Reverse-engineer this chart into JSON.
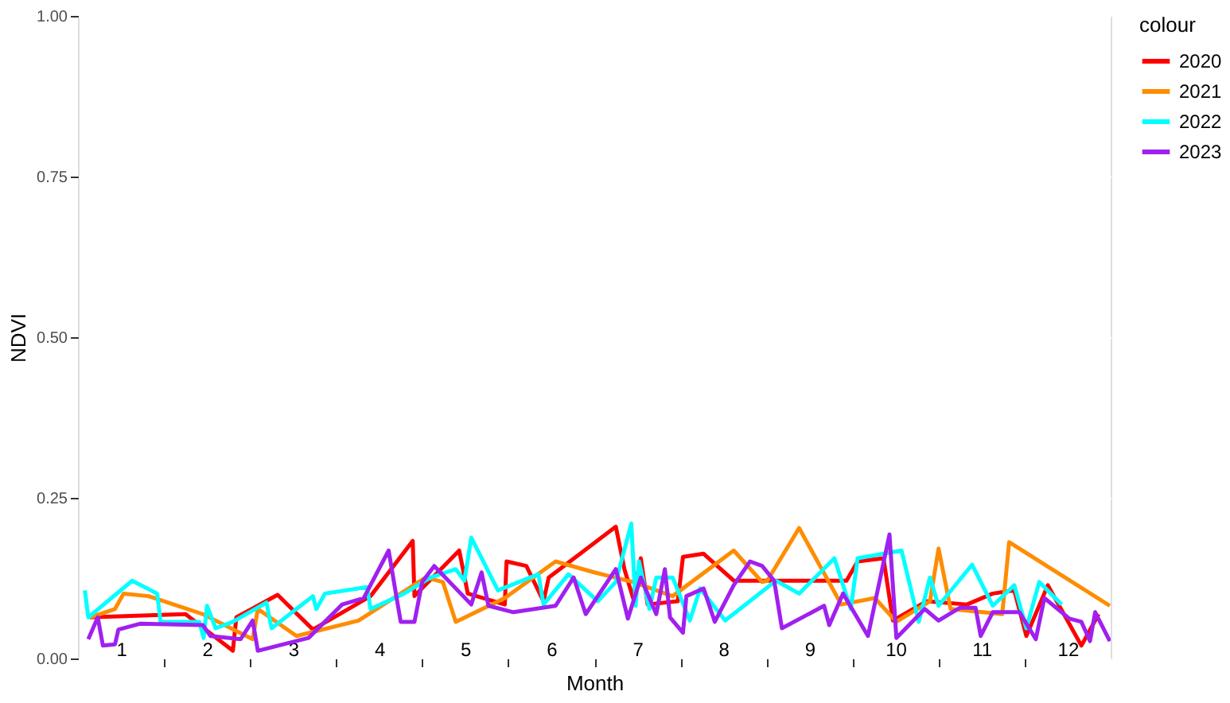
{
  "chart_data": {
    "type": "line",
    "xlabel": "Month",
    "ylabel": "NDVI",
    "legend_title": "colour",
    "legend": "right",
    "grid": true,
    "line_style": "solid",
    "marker": "none",
    "xlim": [
      0.5,
      12.5
    ],
    "xticks": [
      1,
      {
        "value": 1.5,
        "label": null
      },
      2,
      {
        "value": 2.5,
        "label": null
      },
      3,
      {
        "value": 3.5,
        "label": null
      },
      4,
      {
        "value": 4.5,
        "label": null
      },
      5,
      {
        "value": 5.5,
        "label": null
      },
      6,
      {
        "value": 6.5,
        "label": null
      },
      7,
      {
        "value": 7.5,
        "label": null
      },
      8,
      {
        "value": 8.5,
        "label": null
      },
      9,
      {
        "value": 9.5,
        "label": null
      },
      10,
      {
        "value": 10.5,
        "label": null
      },
      11,
      {
        "value": 11.5,
        "label": null
      },
      12
    ],
    "ylim": [
      0,
      1
    ],
    "yticks": [
      {
        "value": 0,
        "label": "0.00"
      },
      {
        "value": 0.25,
        "label": "0.25"
      },
      {
        "value": 0.5,
        "label": "0.50"
      },
      {
        "value": 0.75,
        "label": "0.75"
      },
      {
        "value": 1,
        "label": "1.00"
      }
    ],
    "series": [
      {
        "name": "2020",
        "color": "#ff0000",
        "x": [
          0.64,
          1.32,
          1.75,
          2.3,
          2.34,
          2.82,
          3.23,
          3.9,
          4.39,
          4.41,
          4.93,
          5.03,
          5.46,
          5.48,
          5.71,
          5.91,
          5.97,
          6.75,
          6.85,
          6.95,
          7.04,
          7.12,
          7.47,
          7.53,
          7.77,
          8.12,
          9.43,
          9.56,
          9.86,
          9.97,
          10.36,
          10.83,
          11.13,
          11.38,
          11.52,
          11.77,
          12.16,
          12.36
        ],
        "values": [
          0.064,
          0.067,
          0.069,
          0.012,
          0.064,
          0.099,
          0.045,
          0.097,
          0.183,
          0.097,
          0.168,
          0.101,
          0.084,
          0.151,
          0.144,
          0.089,
          0.126,
          0.205,
          0.139,
          0.094,
          0.156,
          0.084,
          0.089,
          0.158,
          0.163,
          0.121,
          0.121,
          0.151,
          0.156,
          0.059,
          0.089,
          0.084,
          0.101,
          0.106,
          0.035,
          0.114,
          0.02,
          0.069
        ]
      },
      {
        "name": "2021",
        "color": "#ff8c00",
        "x": [
          0.64,
          0.93,
          1.03,
          1.32,
          1.95,
          2.53,
          2.59,
          3.04,
          3.76,
          4.54,
          4.74,
          4.89,
          5.46,
          6.05,
          6.5,
          6.95,
          7.41,
          8.12,
          8.45,
          8.51,
          8.88,
          9.37,
          9.76,
          10.01,
          10.4,
          10.5,
          10.64,
          11.24,
          11.32,
          12.49
        ],
        "values": [
          0.064,
          0.077,
          0.101,
          0.097,
          0.069,
          0.03,
          0.077,
          0.035,
          0.059,
          0.126,
          0.119,
          0.057,
          0.094,
          0.151,
          0.134,
          0.119,
          0.097,
          0.168,
          0.119,
          0.121,
          0.203,
          0.084,
          0.094,
          0.057,
          0.089,
          0.171,
          0.077,
          0.069,
          0.181,
          0.082
        ]
      },
      {
        "name": "2022",
        "color": "#00ffff",
        "x": [
          0.58,
          0.62,
          1.13,
          1.42,
          1.46,
          1.91,
          1.96,
          2.0,
          2.1,
          2.3,
          2.69,
          2.75,
          3.23,
          3.27,
          3.37,
          3.86,
          3.9,
          4.29,
          4.6,
          4.89,
          4.99,
          5.07,
          5.38,
          5.85,
          5.91,
          6.2,
          6.54,
          6.75,
          6.93,
          6.98,
          7.02,
          7.14,
          7.22,
          7.41,
          7.61,
          7.73,
          8.02,
          8.61,
          8.88,
          9.29,
          9.48,
          9.56,
          10.07,
          10.27,
          10.4,
          10.5,
          10.89,
          11.13,
          11.38,
          11.52,
          11.67,
          11.93
        ],
        "values": [
          0.106,
          0.064,
          0.121,
          0.101,
          0.057,
          0.057,
          0.032,
          0.082,
          0.047,
          0.057,
          0.087,
          0.047,
          0.097,
          0.077,
          0.101,
          0.111,
          0.077,
          0.101,
          0.126,
          0.139,
          0.121,
          0.188,
          0.106,
          0.131,
          0.084,
          0.131,
          0.089,
          0.119,
          0.21,
          0.082,
          0.151,
          0.077,
          0.126,
          0.126,
          0.059,
          0.109,
          0.059,
          0.121,
          0.101,
          0.156,
          0.077,
          0.156,
          0.168,
          0.057,
          0.126,
          0.082,
          0.146,
          0.082,
          0.114,
          0.047,
          0.119,
          0.084
        ]
      },
      {
        "name": "2023",
        "color": "#a020f0",
        "x": [
          0.62,
          0.73,
          0.79,
          0.93,
          0.97,
          1.22,
          1.95,
          2.04,
          2.39,
          2.53,
          2.59,
          3.18,
          3.57,
          3.82,
          4.11,
          4.25,
          4.41,
          4.5,
          4.64,
          5.07,
          5.19,
          5.27,
          5.56,
          6.05,
          6.26,
          6.4,
          6.75,
          6.89,
          7.04,
          7.22,
          7.32,
          7.38,
          7.53,
          7.57,
          7.77,
          7.9,
          8.12,
          8.31,
          8.45,
          8.59,
          8.68,
          9.17,
          9.23,
          9.39,
          9.68,
          9.93,
          10.01,
          10.34,
          10.5,
          10.75,
          10.93,
          10.99,
          11.13,
          11.44,
          11.63,
          11.73,
          12.02,
          12.16,
          12.26,
          12.32,
          12.49
        ],
        "values": [
          0.03,
          0.064,
          0.02,
          0.022,
          0.045,
          0.054,
          0.052,
          0.035,
          0.03,
          0.059,
          0.012,
          0.032,
          0.084,
          0.094,
          0.168,
          0.057,
          0.057,
          0.119,
          0.144,
          0.084,
          0.134,
          0.082,
          0.072,
          0.082,
          0.126,
          0.069,
          0.139,
          0.062,
          0.126,
          0.069,
          0.139,
          0.064,
          0.04,
          0.097,
          0.109,
          0.057,
          0.114,
          0.151,
          0.144,
          0.121,
          0.047,
          0.082,
          0.052,
          0.101,
          0.035,
          0.193,
          0.032,
          0.077,
          0.059,
          0.079,
          0.079,
          0.035,
          0.072,
          0.072,
          0.03,
          0.094,
          0.062,
          0.057,
          0.027,
          0.072,
          0.027
        ]
      }
    ]
  }
}
